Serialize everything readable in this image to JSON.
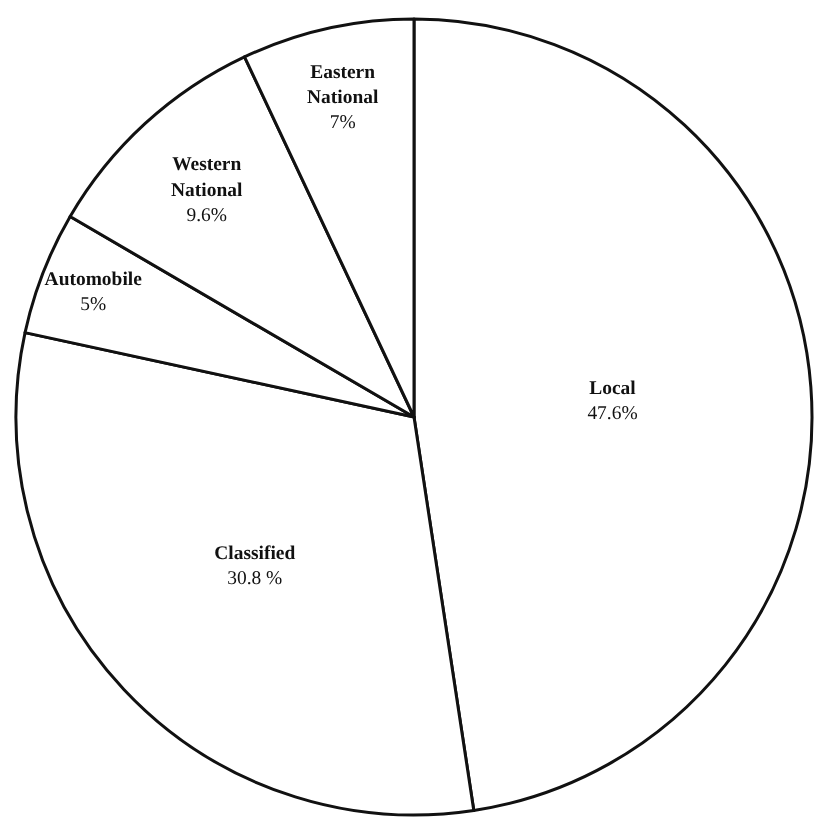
{
  "chart_data": {
    "type": "pie",
    "categories": [
      "Local",
      "Classified",
      "Automobile",
      "Western National",
      "Eastern National"
    ],
    "values": [
      47.6,
      30.8,
      5,
      9.6,
      7
    ],
    "value_labels": [
      "47.6%",
      "30.8 %",
      "5%",
      "9.6%",
      "7%"
    ],
    "colors": [
      "#ffffff",
      "#ffffff",
      "#ffffff",
      "#ffffff",
      "#ffffff"
    ],
    "legend": false
  }
}
